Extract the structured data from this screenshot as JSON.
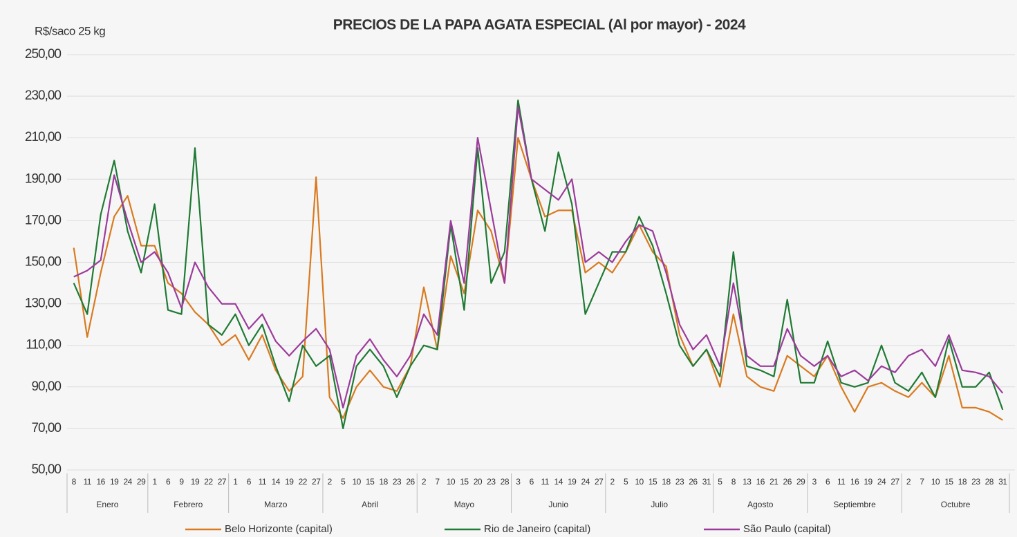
{
  "chart_data": {
    "type": "line",
    "title": "PRECIOS DE LA PAPA AGATA ESPECIAL (Al por mayor) - 2024",
    "y_label": "R$/saco 25 kg",
    "groups": [
      {
        "name": "Enero",
        "categories": [
          "8",
          "11",
          "16",
          "19",
          "24",
          "29"
        ]
      },
      {
        "name": "Febrero",
        "categories": [
          "1",
          "6",
          "9",
          "19",
          "22",
          "27"
        ]
      },
      {
        "name": "Marzo",
        "categories": [
          "1",
          "6",
          "11",
          "14",
          "19",
          "22",
          "27"
        ]
      },
      {
        "name": "Abril",
        "categories": [
          "2",
          "5",
          "10",
          "15",
          "18",
          "23",
          "26"
        ]
      },
      {
        "name": "Mayo",
        "categories": [
          "2",
          "7",
          "10",
          "15",
          "20",
          "23",
          "28"
        ]
      },
      {
        "name": "Junio",
        "categories": [
          "3",
          "6",
          "11",
          "14",
          "19",
          "24",
          "27"
        ]
      },
      {
        "name": "Julio",
        "categories": [
          "2",
          "5",
          "10",
          "15",
          "18",
          "23",
          "26",
          "31"
        ]
      },
      {
        "name": "Agosto",
        "categories": [
          "5",
          "8",
          "13",
          "16",
          "21",
          "26",
          "29"
        ]
      },
      {
        "name": "Septiembre",
        "categories": [
          "3",
          "6",
          "11",
          "16",
          "19",
          "24",
          "27"
        ]
      },
      {
        "name": "Octubre",
        "categories": [
          "2",
          "7",
          "10",
          "15",
          "18",
          "23",
          "28",
          "31"
        ]
      }
    ],
    "series": [
      {
        "name": "Belo Horizonte (capital)",
        "color": "#d97a1f",
        "values": [
          157,
          114,
          145,
          172,
          182,
          158,
          158,
          140,
          135,
          126,
          120,
          110,
          115,
          103,
          115,
          98,
          88,
          95,
          191,
          85,
          75,
          90,
          98,
          90,
          88,
          100,
          138,
          108,
          153,
          135,
          175,
          165,
          140,
          210,
          190,
          172,
          175,
          175,
          145,
          150,
          145,
          155,
          168,
          155,
          148,
          115,
          100,
          108,
          90,
          125,
          95,
          90,
          88,
          105,
          100,
          95,
          105,
          90,
          78,
          90,
          92,
          88,
          85,
          92,
          85,
          105,
          80,
          80,
          78,
          74
        ]
      },
      {
        "name": "Rio de Janeiro (capital)",
        "color": "#1f7a34",
        "values": [
          140,
          125,
          173,
          199,
          165,
          145,
          178,
          127,
          125,
          205,
          120,
          115,
          125,
          110,
          120,
          100,
          83,
          110,
          100,
          105,
          70,
          100,
          108,
          100,
          85,
          100,
          110,
          108,
          168,
          127,
          205,
          140,
          155,
          228,
          190,
          165,
          203,
          178,
          125,
          140,
          155,
          155,
          172,
          158,
          135,
          110,
          100,
          108,
          95,
          155,
          100,
          98,
          95,
          132,
          92,
          92,
          112,
          92,
          90,
          92,
          110,
          92,
          88,
          97,
          85,
          113,
          90,
          90,
          97,
          79
        ]
      },
      {
        "name": "São Paulo (capital)",
        "color": "#9b3b9b",
        "values": [
          143,
          146,
          151,
          192,
          170,
          150,
          155,
          145,
          128,
          150,
          138,
          130,
          130,
          118,
          125,
          112,
          105,
          112,
          118,
          108,
          80,
          105,
          113,
          103,
          95,
          105,
          125,
          115,
          170,
          140,
          210,
          175,
          140,
          225,
          190,
          185,
          180,
          190,
          150,
          155,
          150,
          160,
          168,
          165,
          145,
          120,
          108,
          115,
          100,
          140,
          105,
          100,
          100,
          118,
          105,
          100,
          105,
          95,
          98,
          93,
          100,
          97,
          105,
          108,
          100,
          115,
          98,
          97,
          95,
          87
        ]
      }
    ],
    "ylim": [
      50,
      250
    ],
    "yticks": [
      {
        "value": 50,
        "label": "50,00"
      },
      {
        "value": 70,
        "label": "70,00"
      },
      {
        "value": 90,
        "label": "90,00"
      },
      {
        "value": 110,
        "label": "110,00"
      },
      {
        "value": 130,
        "label": "130,00"
      },
      {
        "value": 150,
        "label": "150,00"
      },
      {
        "value": 170,
        "label": "170,00"
      },
      {
        "value": 190,
        "label": "190,00"
      },
      {
        "value": 210,
        "label": "210,00"
      },
      {
        "value": 230,
        "label": "230,00"
      },
      {
        "value": 250,
        "label": "250,00"
      }
    ],
    "grid": true,
    "legend": "bottom"
  }
}
